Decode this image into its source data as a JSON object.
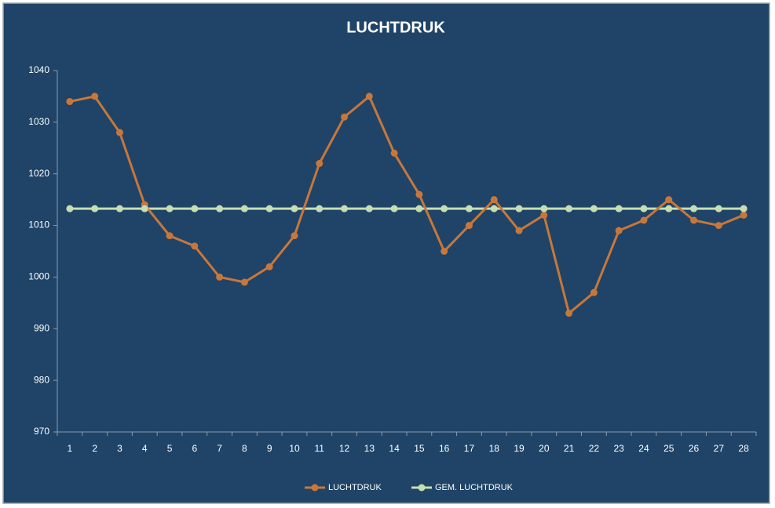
{
  "chart_data": {
    "type": "line",
    "title": "LUCHTDRUK",
    "categories": [
      "1",
      "2",
      "3",
      "4",
      "5",
      "6",
      "7",
      "8",
      "9",
      "10",
      "11",
      "12",
      "13",
      "14",
      "15",
      "16",
      "17",
      "18",
      "19",
      "20",
      "21",
      "22",
      "23",
      "24",
      "25",
      "26",
      "27",
      "28"
    ],
    "series": [
      {
        "name": "LUCHTDRUK",
        "color": "#c8773a",
        "values": [
          1034,
          1035,
          1028,
          1014,
          1008,
          1006,
          1000,
          999,
          1002,
          1008,
          1022,
          1031,
          1035,
          1024,
          1016,
          1005,
          1010,
          1015,
          1009,
          1012,
          993,
          997,
          1009,
          1011,
          1015,
          1011,
          1010,
          1012
        ]
      },
      {
        "name": "GEM. LUCHTDRUK",
        "color": "#c6deb2",
        "values": [
          1013.25,
          1013.25,
          1013.25,
          1013.25,
          1013.25,
          1013.25,
          1013.25,
          1013.25,
          1013.25,
          1013.25,
          1013.25,
          1013.25,
          1013.25,
          1013.25,
          1013.25,
          1013.25,
          1013.25,
          1013.25,
          1013.25,
          1013.25,
          1013.25,
          1013.25,
          1013.25,
          1013.25,
          1013.25,
          1013.25,
          1013.25,
          1013.25
        ]
      }
    ],
    "ylim": [
      970,
      1040
    ],
    "yticks": [
      970,
      980,
      990,
      1000,
      1010,
      1020,
      1030,
      1040
    ],
    "grid": false,
    "legend": "bottom"
  }
}
